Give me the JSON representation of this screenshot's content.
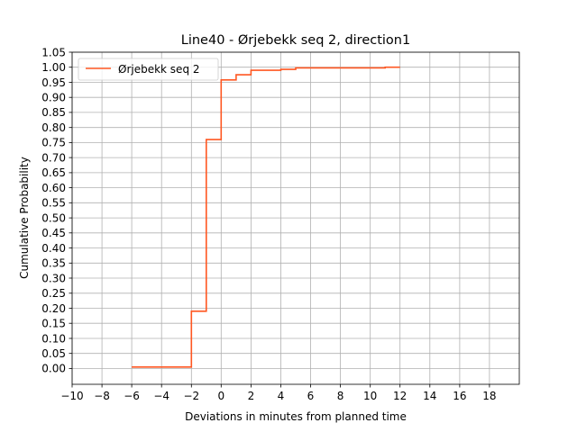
{
  "chart_data": {
    "type": "line",
    "title": "Line40 - Ørjebekk seq 2, direction1",
    "xlabel": "Deviations in minutes from planned time",
    "ylabel": "Cumulative Probability",
    "xlim": [
      -10,
      20
    ],
    "ylim": [
      -0.0525,
      1.05
    ],
    "xticks": [
      -10,
      -8,
      -6,
      -4,
      -2,
      0,
      2,
      4,
      6,
      8,
      10,
      12,
      14,
      16,
      18
    ],
    "yticks": [
      0.0,
      0.05,
      0.1,
      0.15,
      0.2,
      0.25,
      0.3,
      0.35,
      0.4,
      0.45,
      0.5,
      0.55,
      0.6,
      0.65,
      0.7,
      0.75,
      0.8,
      0.85,
      0.9,
      0.95,
      1.0,
      1.05
    ],
    "grid": true,
    "legend_position": "top-left",
    "series": [
      {
        "name": "Ørjebekk seq 2",
        "color": "#ff5722",
        "step": true,
        "x": [
          -6,
          -5,
          -4,
          -3,
          -2,
          -1,
          0,
          1,
          2,
          3,
          4,
          5,
          6,
          7,
          8,
          9,
          10,
          11,
          12
        ],
        "y": [
          0.005,
          0.005,
          0.005,
          0.005,
          0.005,
          0.19,
          0.76,
          0.958,
          0.975,
          0.99,
          0.99,
          0.993,
          0.998,
          0.998,
          0.998,
          0.998,
          0.998,
          0.998,
          1.0
        ]
      }
    ]
  }
}
